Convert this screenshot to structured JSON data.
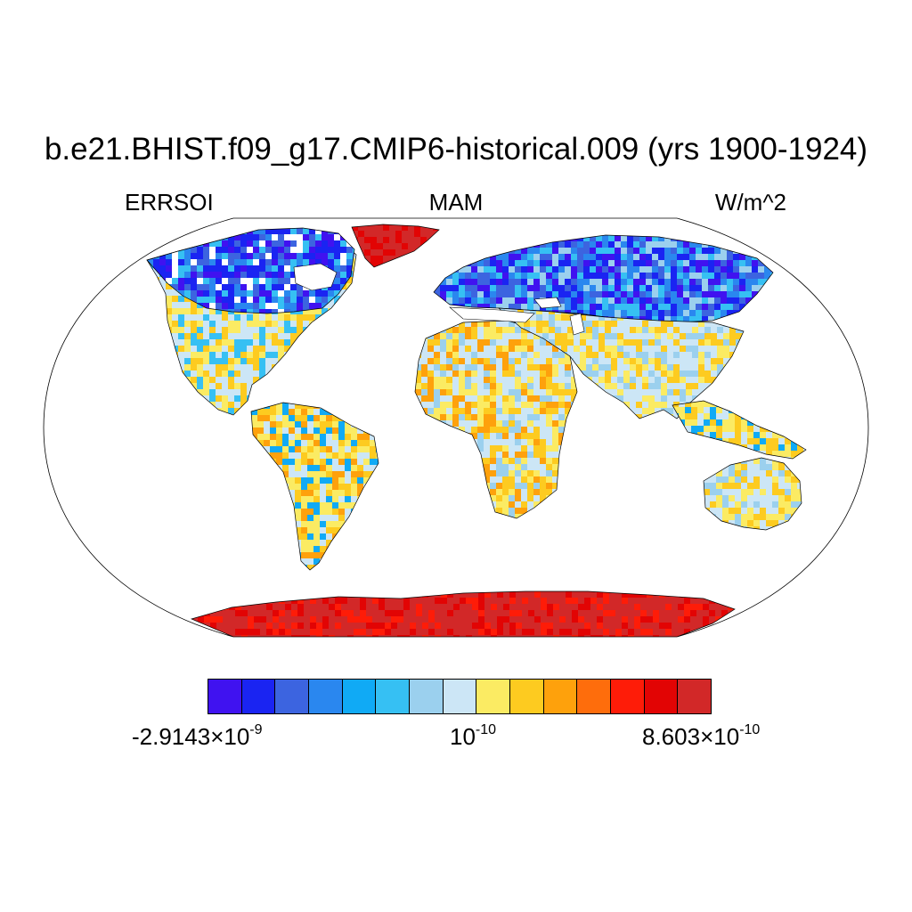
{
  "title": "b.e21.BHIST.f09_g17.CMIP6-historical.009 (yrs 1900-1924)",
  "variable": "ERRSOI",
  "season": "MAM",
  "units": "W/m^2",
  "colorbar": {
    "colors": [
      "#4012f0",
      "#1a24f2",
      "#3c64e0",
      "#2a87ef",
      "#10aaf5",
      "#36c0f3",
      "#9bd0ee",
      "#cce6f6",
      "#fbeb63",
      "#fdcb20",
      "#fea10c",
      "#fe6d0c",
      "#fe1c08",
      "#e20404",
      "#d22828"
    ],
    "labels": [
      {
        "mantissa": "-2.9143",
        "times": "×",
        "base": "10",
        "exponent": "-9"
      },
      {
        "mantissa": "",
        "times": "",
        "base": "10",
        "exponent": "-10"
      },
      {
        "mantissa": "8.603",
        "times": "×",
        "base": "10",
        "exponent": "-10"
      }
    ]
  },
  "map": {
    "projection": "robinson",
    "regions": [
      {
        "name": "north-america",
        "palette": [
          "#cce6f6",
          "#fbeb63",
          "#fdcb20",
          "#36c0f3"
        ]
      },
      {
        "name": "canada-arctic",
        "palette": [
          "#1a24f2",
          "#3c64e0",
          "#4012f0",
          "#2a87ef",
          "#36c0f3",
          "#ffffff"
        ]
      },
      {
        "name": "greenland",
        "palette": [
          "#d22828",
          "#e20404"
        ]
      },
      {
        "name": "south-america",
        "palette": [
          "#fbeb63",
          "#fdcb20",
          "#cce6f6",
          "#fea10c",
          "#10aaf5"
        ]
      },
      {
        "name": "europe-russia",
        "palette": [
          "#2a87ef",
          "#3c64e0",
          "#1a24f2",
          "#36c0f3",
          "#9bd0ee",
          "#4012f0"
        ]
      },
      {
        "name": "africa",
        "palette": [
          "#cce6f6",
          "#fbeb63",
          "#fdcb20",
          "#9bd0ee",
          "#fea10c"
        ]
      },
      {
        "name": "middle-east-asia",
        "palette": [
          "#cce6f6",
          "#fbeb63",
          "#fdcb20",
          "#9bd0ee"
        ]
      },
      {
        "name": "southeast-asia",
        "palette": [
          "#fdcb20",
          "#fbeb63",
          "#cce6f6",
          "#10aaf5"
        ]
      },
      {
        "name": "australia",
        "palette": [
          "#cce6f6",
          "#fbeb63",
          "#9bd0ee",
          "#fdcb20"
        ]
      },
      {
        "name": "antarctica",
        "palette": [
          "#d22828",
          "#e20404",
          "#d22828",
          "#fe1c08"
        ]
      }
    ]
  }
}
